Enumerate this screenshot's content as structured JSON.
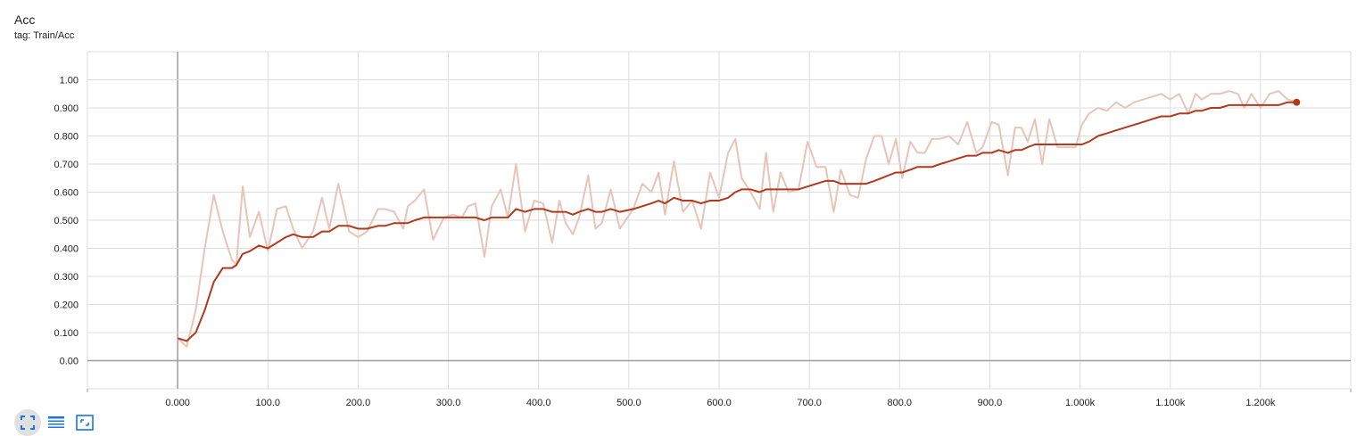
{
  "card": {
    "title": "Acc",
    "tag": "tag: Train/Acc"
  },
  "colors": {
    "smoothed": "#b03a1f",
    "raw": "#e8c4b8",
    "grid": "#dddddd",
    "axis": "#9e9e9e",
    "icon": "#1a73e8"
  },
  "toolbar": {
    "buttons": [
      {
        "name": "expand-chart-icon"
      },
      {
        "name": "log-scale-icon"
      },
      {
        "name": "fit-domain-icon"
      }
    ]
  },
  "chart_data": {
    "type": "line",
    "title": "Acc",
    "subtitle": "tag: Train/Acc",
    "x_ticks": [
      "0.000",
      "100.0",
      "200.0",
      "300.0",
      "400.0",
      "500.0",
      "600.0",
      "700.0",
      "800.0",
      "900.0",
      "1.000k",
      "1.100k",
      "1.200k"
    ],
    "y_ticks": [
      "0.00",
      "0.100",
      "0.200",
      "0.300",
      "0.400",
      "0.500",
      "0.600",
      "0.700",
      "0.800",
      "0.900",
      "1.00"
    ],
    "xlim": [
      -100,
      1300
    ],
    "ylim": [
      -0.1,
      1.1
    ],
    "grid": true,
    "series": [
      {
        "role": "raw",
        "x": [
          0,
          10,
          20,
          30,
          40,
          50,
          60,
          65,
          72,
          80,
          90,
          100,
          110,
          120,
          128,
          138,
          150,
          160,
          168,
          178,
          190,
          200,
          210,
          222,
          230,
          240,
          250,
          255,
          263,
          273,
          283,
          295,
          305,
          315,
          322,
          330,
          340,
          348,
          358,
          366,
          375,
          385,
          395,
          405,
          415,
          423,
          430,
          438,
          445,
          455,
          463,
          470,
          480,
          490,
          505,
          515,
          525,
          533,
          540,
          550,
          560,
          570,
          580,
          590,
          600,
          610,
          618,
          625,
          635,
          645,
          652,
          660,
          668,
          677,
          688,
          698,
          708,
          718,
          727,
          735,
          745,
          754,
          763,
          772,
          780,
          788,
          796,
          803,
          812,
          820,
          828,
          836,
          845,
          855,
          865,
          875,
          885,
          892,
          902,
          910,
          920,
          928,
          935,
          942,
          950,
          958,
          966,
          975,
          985,
          995,
          1002,
          1010,
          1020,
          1030,
          1040,
          1050,
          1060,
          1070,
          1080,
          1090,
          1100,
          1110,
          1120,
          1128,
          1135,
          1145,
          1155,
          1165,
          1175,
          1182,
          1190,
          1200,
          1210,
          1220,
          1230,
          1240
        ],
        "y": [
          0.08,
          0.05,
          0.18,
          0.4,
          0.59,
          0.46,
          0.36,
          0.34,
          0.62,
          0.44,
          0.53,
          0.39,
          0.54,
          0.55,
          0.47,
          0.4,
          0.46,
          0.58,
          0.47,
          0.63,
          0.46,
          0.44,
          0.46,
          0.54,
          0.54,
          0.53,
          0.47,
          0.55,
          0.57,
          0.61,
          0.43,
          0.51,
          0.52,
          0.51,
          0.55,
          0.56,
          0.37,
          0.55,
          0.61,
          0.51,
          0.7,
          0.46,
          0.57,
          0.56,
          0.42,
          0.57,
          0.49,
          0.45,
          0.51,
          0.66,
          0.47,
          0.49,
          0.61,
          0.47,
          0.54,
          0.63,
          0.6,
          0.67,
          0.52,
          0.71,
          0.53,
          0.57,
          0.47,
          0.67,
          0.58,
          0.74,
          0.79,
          0.65,
          0.6,
          0.54,
          0.74,
          0.53,
          0.67,
          0.6,
          0.61,
          0.78,
          0.69,
          0.69,
          0.53,
          0.68,
          0.59,
          0.58,
          0.72,
          0.8,
          0.8,
          0.7,
          0.79,
          0.65,
          0.78,
          0.74,
          0.74,
          0.79,
          0.79,
          0.8,
          0.77,
          0.85,
          0.74,
          0.76,
          0.85,
          0.84,
          0.66,
          0.83,
          0.83,
          0.78,
          0.86,
          0.7,
          0.86,
          0.76,
          0.76,
          0.76,
          0.84,
          0.88,
          0.9,
          0.89,
          0.92,
          0.9,
          0.92,
          0.93,
          0.94,
          0.95,
          0.93,
          0.95,
          0.88,
          0.95,
          0.93,
          0.95,
          0.95,
          0.96,
          0.95,
          0.9,
          0.95,
          0.9,
          0.95,
          0.96,
          0.93,
          0.92
        ]
      },
      {
        "role": "smoothed",
        "x": [
          0,
          10,
          20,
          30,
          40,
          50,
          60,
          65,
          72,
          80,
          90,
          100,
          110,
          120,
          128,
          138,
          150,
          160,
          168,
          178,
          190,
          200,
          210,
          222,
          230,
          240,
          250,
          255,
          263,
          273,
          283,
          295,
          305,
          315,
          322,
          330,
          340,
          348,
          358,
          366,
          375,
          385,
          395,
          405,
          415,
          423,
          430,
          438,
          445,
          455,
          463,
          470,
          480,
          490,
          505,
          515,
          525,
          533,
          540,
          550,
          560,
          570,
          580,
          590,
          600,
          610,
          618,
          625,
          635,
          645,
          652,
          660,
          668,
          677,
          688,
          698,
          708,
          718,
          727,
          735,
          745,
          754,
          763,
          772,
          780,
          788,
          796,
          803,
          812,
          820,
          828,
          836,
          845,
          855,
          865,
          875,
          885,
          892,
          902,
          910,
          920,
          928,
          935,
          942,
          950,
          958,
          966,
          975,
          985,
          995,
          1002,
          1010,
          1020,
          1030,
          1040,
          1050,
          1060,
          1070,
          1080,
          1090,
          1100,
          1110,
          1120,
          1128,
          1135,
          1145,
          1155,
          1165,
          1175,
          1182,
          1190,
          1200,
          1210,
          1220,
          1230,
          1240
        ],
        "y": [
          0.08,
          0.07,
          0.1,
          0.18,
          0.28,
          0.33,
          0.33,
          0.34,
          0.38,
          0.39,
          0.41,
          0.4,
          0.42,
          0.44,
          0.45,
          0.44,
          0.44,
          0.46,
          0.46,
          0.48,
          0.48,
          0.47,
          0.47,
          0.48,
          0.48,
          0.49,
          0.49,
          0.49,
          0.5,
          0.51,
          0.51,
          0.51,
          0.51,
          0.51,
          0.51,
          0.51,
          0.5,
          0.51,
          0.51,
          0.51,
          0.54,
          0.53,
          0.54,
          0.54,
          0.53,
          0.53,
          0.53,
          0.52,
          0.53,
          0.54,
          0.53,
          0.53,
          0.54,
          0.53,
          0.54,
          0.55,
          0.56,
          0.57,
          0.56,
          0.58,
          0.57,
          0.57,
          0.56,
          0.57,
          0.57,
          0.58,
          0.6,
          0.61,
          0.61,
          0.6,
          0.61,
          0.61,
          0.61,
          0.61,
          0.61,
          0.62,
          0.63,
          0.64,
          0.64,
          0.63,
          0.63,
          0.63,
          0.63,
          0.64,
          0.65,
          0.66,
          0.67,
          0.67,
          0.68,
          0.69,
          0.69,
          0.69,
          0.7,
          0.71,
          0.72,
          0.73,
          0.73,
          0.74,
          0.74,
          0.75,
          0.74,
          0.75,
          0.75,
          0.76,
          0.77,
          0.77,
          0.77,
          0.77,
          0.77,
          0.77,
          0.77,
          0.78,
          0.8,
          0.81,
          0.82,
          0.83,
          0.84,
          0.85,
          0.86,
          0.87,
          0.87,
          0.88,
          0.88,
          0.89,
          0.89,
          0.9,
          0.9,
          0.91,
          0.91,
          0.91,
          0.91,
          0.91,
          0.91,
          0.91,
          0.92,
          0.92
        ]
      }
    ]
  }
}
